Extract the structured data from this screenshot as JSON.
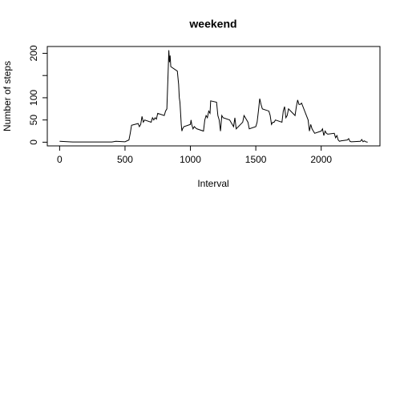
{
  "chart_data": {
    "type": "line",
    "title": "weekend",
    "xlabel": "Interval",
    "ylabel": "Number of steps",
    "x": [
      0,
      100,
      200,
      300,
      400,
      430,
      500,
      530,
      540,
      550,
      600,
      610,
      620,
      630,
      640,
      650,
      700,
      710,
      720,
      730,
      740,
      750,
      800,
      810,
      820,
      830,
      835,
      840,
      845,
      850,
      900,
      910,
      915,
      920,
      930,
      935,
      940,
      950,
      1000,
      1005,
      1010,
      1020,
      1030,
      1040,
      1050,
      1100,
      1110,
      1120,
      1130,
      1140,
      1150,
      1155,
      1200,
      1210,
      1220,
      1230,
      1240,
      1250,
      1300,
      1310,
      1320,
      1330,
      1340,
      1350,
      1400,
      1410,
      1420,
      1430,
      1440,
      1450,
      1500,
      1510,
      1520,
      1530,
      1540,
      1550,
      1600,
      1610,
      1620,
      1630,
      1640,
      1650,
      1700,
      1710,
      1720,
      1730,
      1740,
      1750,
      1800,
      1810,
      1820,
      1830,
      1840,
      1850,
      1900,
      1910,
      1920,
      1930,
      1940,
      1950,
      2000,
      2010,
      2020,
      2030,
      2040,
      2050,
      2100,
      2110,
      2120,
      2130,
      2140,
      2150,
      2200,
      2210,
      2220,
      2230,
      2300,
      2310,
      2320,
      2330,
      2340,
      2355
    ],
    "series": [
      {
        "name": "weekend",
        "color": "#000000",
        "values": [
          2,
          0.5,
          0.5,
          0.5,
          0.5,
          2,
          1,
          5,
          20,
          38,
          42,
          35,
          40,
          58,
          45,
          50,
          45,
          55,
          50,
          55,
          52,
          65,
          60,
          70,
          75,
          160,
          207,
          180,
          195,
          170,
          160,
          130,
          100,
          90,
          40,
          25,
          30,
          35,
          40,
          50,
          40,
          30,
          35,
          32,
          30,
          25,
          50,
          60,
          55,
          70,
          65,
          93,
          90,
          60,
          50,
          25,
          60,
          55,
          50,
          45,
          40,
          35,
          55,
          30,
          45,
          60,
          55,
          50,
          45,
          30,
          35,
          45,
          70,
          98,
          85,
          75,
          70,
          60,
          40,
          45,
          45,
          50,
          45,
          70,
          80,
          55,
          60,
          75,
          60,
          80,
          95,
          85,
          85,
          88,
          50,
          25,
          40,
          30,
          25,
          20,
          25,
          30,
          15,
          25,
          20,
          18,
          20,
          10,
          15,
          5,
          2,
          3,
          5,
          8,
          2,
          1,
          2,
          6,
          1,
          3,
          1,
          0
        ]
      }
    ],
    "xlim": [
      -94.2,
      2449.2
    ],
    "xticks": [
      0,
      500,
      1000,
      1500,
      2000
    ],
    "ylim": [
      -8.3,
      215.3
    ],
    "yticks": [
      0,
      50,
      100,
      {
        "value": 150
      },
      200
    ]
  }
}
